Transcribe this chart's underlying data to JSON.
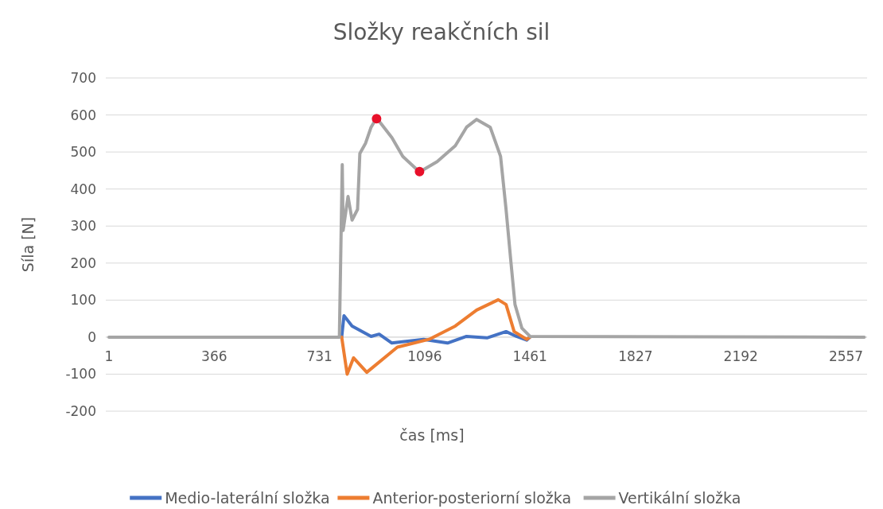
{
  "chart_data": {
    "type": "line",
    "title": "Složky reakčních sil",
    "xlabel": "čas [ms]",
    "ylabel": "Síla [N]",
    "xlim": [
      -10,
      2630
    ],
    "xticks": [
      1,
      366,
      731,
      1096,
      1461,
      1827,
      2192,
      2557
    ],
    "ylim": [
      -200,
      700
    ],
    "yticks": [
      -200,
      -100,
      0,
      100,
      200,
      300,
      400,
      500,
      600,
      700
    ],
    "grid": "y",
    "legend": "bottom",
    "marker": "none",
    "line_style": "solid",
    "series": [
      {
        "name": "Medio-laterální složka",
        "color": "#4472c4",
        "x": [
          808,
          816,
          844,
          910,
          938,
          982,
          1092,
          1175,
          1241,
          1312,
          1378,
          1414,
          1450,
          1461
        ],
        "values": [
          0,
          58,
          30,
          2,
          8,
          -16,
          -6,
          -16,
          2,
          -2,
          15,
          2,
          -8,
          0
        ]
      },
      {
        "name": "Anterior-posteriorní složka",
        "color": "#ed7d31",
        "x": [
          808,
          827,
          849,
          895,
          1001,
          1111,
          1202,
          1276,
          1351,
          1378,
          1406,
          1450,
          1461
        ],
        "values": [
          0,
          -100,
          -56,
          -95,
          -27,
          -6,
          30,
          73,
          101,
          88,
          15,
          -6,
          0
        ]
      },
      {
        "name": "Vertikální složka",
        "color": "#a5a5a5",
        "x": [
          1,
          800,
          810,
          813,
          830,
          844,
          863,
          871,
          891,
          910,
          929,
          982,
          1020,
          1078,
          1139,
          1202,
          1241,
          1276,
          1323,
          1359,
          1378,
          1395,
          1409,
          1433,
          1461,
          2620
        ],
        "values": [
          0,
          0,
          466,
          288,
          380,
          316,
          345,
          496,
          524,
          567,
          592,
          539,
          488,
          446,
          474,
          517,
          567,
          588,
          567,
          488,
          345,
          202,
          88,
          24,
          2,
          0
        ]
      },
      {
        "type": "scatter",
        "marker": "circle",
        "color": "#e8102a",
        "x": [
          929,
          1078
        ],
        "values": [
          590,
          447
        ]
      }
    ]
  }
}
